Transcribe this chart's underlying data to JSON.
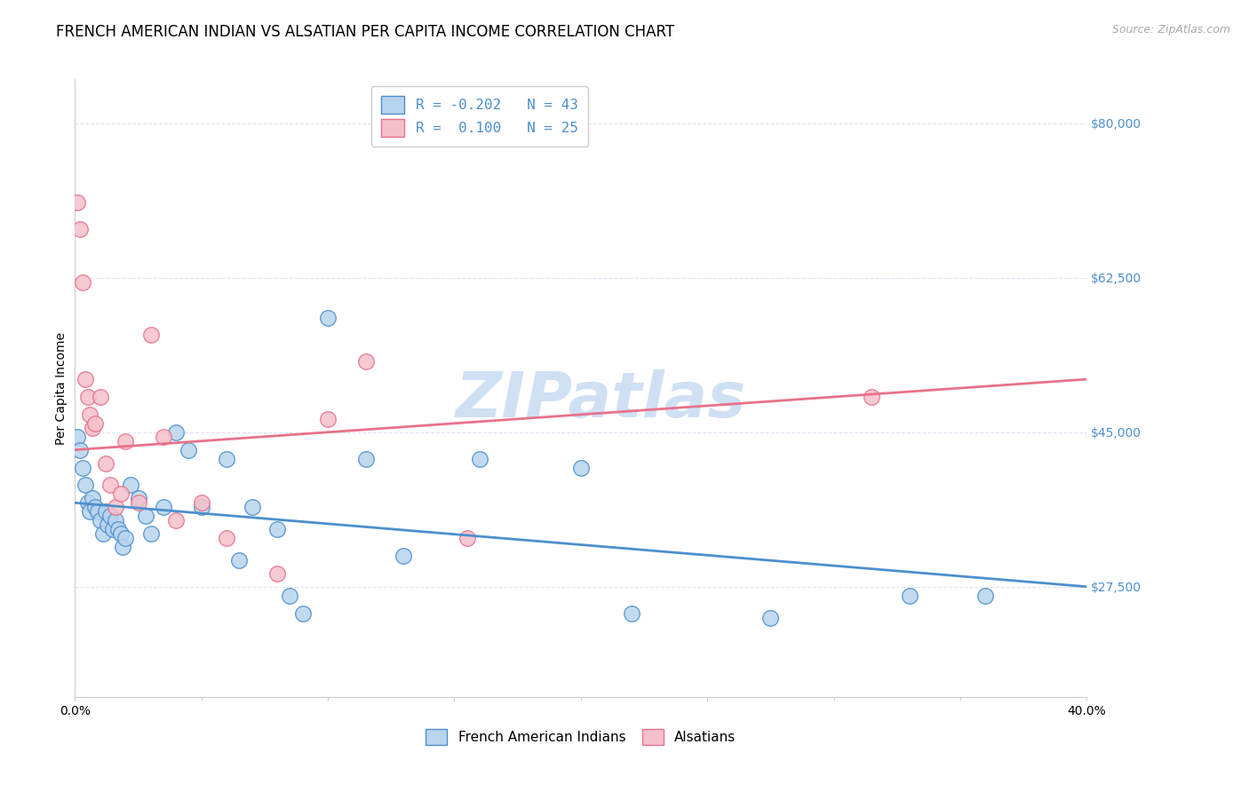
{
  "title": "FRENCH AMERICAN INDIAN VS ALSATIAN PER CAPITA INCOME CORRELATION CHART",
  "source": "Source: ZipAtlas.com",
  "ylabel": "Per Capita Income",
  "watermark": "ZIPatlas",
  "xmin": 0.0,
  "xmax": 0.4,
  "ymin": 15000,
  "ymax": 85000,
  "yticks": [
    27500,
    45000,
    62500,
    80000
  ],
  "ytick_labels": [
    "$27,500",
    "$45,000",
    "$62,500",
    "$80,000"
  ],
  "xticks": [
    0.0,
    0.05,
    0.1,
    0.15,
    0.2,
    0.25,
    0.3,
    0.35,
    0.4
  ],
  "xtick_labels": [
    "0.0%",
    "",
    "",
    "",
    "",
    "",
    "",
    "",
    "40.0%"
  ],
  "legend_r_line1": "R = -0.202   N = 43",
  "legend_r_line2": "R =  0.100   N = 25",
  "legend_labels": [
    "French American Indians",
    "Alsatians"
  ],
  "blue_color": "#4d8fcc",
  "pink_color": "#e8718a",
  "blue_fill": "#b8d4ee",
  "pink_fill": "#f5c0cc",
  "blue_points_x": [
    0.001,
    0.002,
    0.003,
    0.004,
    0.005,
    0.006,
    0.007,
    0.008,
    0.009,
    0.01,
    0.011,
    0.012,
    0.013,
    0.014,
    0.015,
    0.016,
    0.017,
    0.018,
    0.019,
    0.02,
    0.022,
    0.025,
    0.028,
    0.03,
    0.035,
    0.04,
    0.045,
    0.05,
    0.06,
    0.065,
    0.07,
    0.08,
    0.085,
    0.09,
    0.1,
    0.115,
    0.13,
    0.16,
    0.2,
    0.22,
    0.275,
    0.33,
    0.36
  ],
  "blue_points_y": [
    44500,
    43000,
    41000,
    39000,
    37000,
    36000,
    37500,
    36500,
    36000,
    35000,
    33500,
    36000,
    34500,
    35500,
    34000,
    35000,
    34000,
    33500,
    32000,
    33000,
    39000,
    37500,
    35500,
    33500,
    36500,
    45000,
    43000,
    36500,
    42000,
    30500,
    36500,
    34000,
    26500,
    24500,
    58000,
    42000,
    31000,
    42000,
    41000,
    24500,
    24000,
    26500,
    26500
  ],
  "pink_points_x": [
    0.001,
    0.002,
    0.003,
    0.004,
    0.005,
    0.006,
    0.007,
    0.008,
    0.01,
    0.012,
    0.014,
    0.016,
    0.018,
    0.02,
    0.025,
    0.03,
    0.035,
    0.04,
    0.05,
    0.06,
    0.08,
    0.1,
    0.115,
    0.155,
    0.315
  ],
  "pink_points_y": [
    71000,
    68000,
    62000,
    51000,
    49000,
    47000,
    45500,
    46000,
    49000,
    41500,
    39000,
    36500,
    38000,
    44000,
    37000,
    56000,
    44500,
    35000,
    37000,
    33000,
    29000,
    46500,
    53000,
    33000,
    49000
  ],
  "blue_line_x": [
    0.0,
    0.4
  ],
  "blue_line_y": [
    37000,
    27500
  ],
  "pink_line_x": [
    0.0,
    0.4
  ],
  "pink_line_y": [
    43000,
    51000
  ],
  "background_color": "#ffffff",
  "grid_color": "#dce4f0",
  "title_fontsize": 12,
  "axis_label_fontsize": 10,
  "tick_fontsize": 10,
  "watermark_fontsize": 52,
  "watermark_color": "#d0e0f4",
  "source_fontsize": 9,
  "source_color": "#aaaaaa",
  "tick_color": "#4d8fcc"
}
